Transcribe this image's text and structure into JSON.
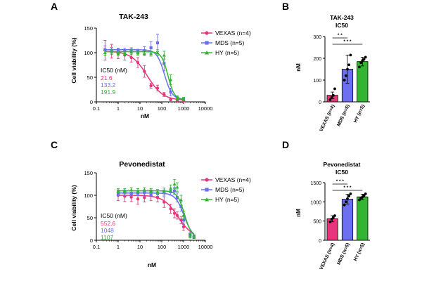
{
  "colors": {
    "vexas": "#e8347a",
    "mds": "#6b6ff0",
    "hy": "#33b533",
    "axis": "#000000"
  },
  "chart_data": [
    {
      "panel_letter": "A",
      "type": "line",
      "title": "TAK-243",
      "xlabel": "nM",
      "ylabel": "Cell viability (%)",
      "xscale": "log",
      "xlim": [
        0.1,
        10000
      ],
      "ylim": [
        0,
        150
      ],
      "xticks": [
        0.1,
        1,
        10,
        100,
        1000,
        10000
      ],
      "xtick_labels": [
        "0.1",
        "1",
        "10",
        "100",
        "1000",
        "10000"
      ],
      "yticks": [
        0,
        50,
        100,
        150
      ],
      "ytick_labels": [
        "0",
        "50",
        "100",
        "150"
      ],
      "legend_position": "right",
      "ic50_header": "IC50 (nM)",
      "series": [
        {
          "name": "VEXAS (n=4)",
          "color_key": "vexas",
          "ic50": 21.6,
          "ic50_label": "21.6",
          "hill": 1.2,
          "top": 103,
          "bottom": 3,
          "x": [
            0.25,
            0.5,
            1,
            2,
            4,
            8,
            16,
            32,
            64,
            128,
            256,
            512,
            1000
          ],
          "y": [
            105,
            103,
            98,
            95,
            90,
            80,
            62,
            33,
            28,
            15,
            5,
            3,
            2
          ],
          "err": [
            20,
            14,
            10,
            10,
            9,
            10,
            12,
            5,
            6,
            4,
            3,
            2,
            2
          ]
        },
        {
          "name": "MDS (n=5)",
          "color_key": "mds",
          "ic50": 133.2,
          "ic50_label": "133.2",
          "hill": 2.5,
          "top": 106,
          "bottom": 5,
          "x": [
            0.25,
            0.5,
            1,
            2,
            4,
            8,
            16,
            32,
            64,
            128,
            256,
            512,
            1000
          ],
          "y": [
            106,
            105,
            103,
            104,
            105,
            102,
            104,
            110,
            120,
            78,
            20,
            8,
            5
          ],
          "err": [
            8,
            6,
            6,
            5,
            5,
            5,
            8,
            12,
            18,
            15,
            8,
            4,
            3
          ]
        },
        {
          "name": "HY (n=5)",
          "color_key": "hy",
          "ic50": 191.9,
          "ic50_label": "191.9",
          "hill": 3.0,
          "top": 102,
          "bottom": 5,
          "x": [
            0.25,
            0.5,
            1,
            2,
            4,
            8,
            16,
            32,
            64,
            128,
            256,
            512,
            1000
          ],
          "y": [
            100,
            101,
            100,
            100,
            101,
            100,
            99,
            98,
            100,
            95,
            45,
            8,
            6
          ],
          "err": [
            5,
            5,
            5,
            5,
            5,
            5,
            5,
            5,
            6,
            8,
            10,
            4,
            3
          ]
        }
      ]
    },
    {
      "panel_letter": "B",
      "type": "bar",
      "title": "TAK-243",
      "subtitle": "IC50",
      "ylabel": "nM",
      "ylim": [
        0,
        300
      ],
      "yticks": [
        0,
        100,
        200,
        300
      ],
      "ytick_labels": [
        "0",
        "100",
        "200",
        "300"
      ],
      "categories": [
        "VEXAS (n=4)",
        "MDS (n=5)",
        "HY (n=5)"
      ],
      "values": [
        30,
        150,
        185
      ],
      "errors": [
        15,
        65,
        20
      ],
      "points": [
        [
          10,
          20,
          30,
          60
        ],
        [
          100,
          120,
          150,
          170,
          215
        ],
        [
          160,
          180,
          190,
          195,
          205
        ]
      ],
      "bar_color_keys": [
        "vexas",
        "mds",
        "hy"
      ],
      "significance": [
        {
          "from": 0,
          "to": 1,
          "label": "* *"
        },
        {
          "from": 0,
          "to": 2,
          "label": "* * *"
        }
      ]
    },
    {
      "panel_letter": "C",
      "type": "line",
      "title": "Pevonedistat",
      "xlabel": "nM",
      "ylabel": "Cell viability (%)",
      "xscale": "log",
      "xlim": [
        0.1,
        10000
      ],
      "ylim": [
        0,
        150
      ],
      "xticks": [
        0.1,
        1,
        10,
        100,
        1000,
        10000
      ],
      "xtick_labels": [
        "0.1",
        "1",
        "10",
        "100",
        "1000",
        "10000"
      ],
      "yticks": [
        0,
        50,
        100,
        150
      ],
      "ytick_labels": [
        "0",
        "50",
        "100",
        "150"
      ],
      "legend_position": "right",
      "ic50_header": "IC50 (nM)",
      "series": [
        {
          "name": "VEXAS (n=4)",
          "color_key": "vexas",
          "ic50": 552.6,
          "ic50_label": "552.6",
          "hill": 1.3,
          "top": 100,
          "bottom": 5,
          "x": [
            1,
            2,
            4,
            8,
            16,
            32,
            64,
            128,
            256,
            384,
            512,
            768,
            1000,
            2000,
            3000
          ],
          "y": [
            100,
            98,
            96,
            92,
            95,
            100,
            95,
            85,
            70,
            60,
            55,
            45,
            30,
            12,
            8
          ],
          "err": [
            12,
            12,
            10,
            12,
            10,
            12,
            10,
            12,
            10,
            10,
            8,
            8,
            8,
            5,
            4
          ]
        },
        {
          "name": "MDS (n=5)",
          "color_key": "mds",
          "ic50": 1048,
          "ic50_label": "1048",
          "hill": 2.2,
          "top": 105,
          "bottom": 5,
          "x": [
            1,
            2,
            4,
            8,
            16,
            32,
            64,
            128,
            256,
            384,
            512,
            768,
            1000,
            2000,
            3000
          ],
          "y": [
            105,
            106,
            104,
            105,
            106,
            105,
            104,
            106,
            108,
            110,
            95,
            75,
            45,
            12,
            8
          ],
          "err": [
            6,
            6,
            6,
            6,
            6,
            6,
            6,
            6,
            8,
            8,
            10,
            10,
            10,
            5,
            4
          ]
        },
        {
          "name": "HY (n=5)",
          "color_key": "hy",
          "ic50": 1107,
          "ic50_label": "1107",
          "hill": 2.6,
          "top": 110,
          "bottom": 5,
          "x": [
            1,
            2,
            4,
            8,
            16,
            32,
            64,
            128,
            256,
            384,
            512,
            768,
            1000,
            2000,
            3000
          ],
          "y": [
            110,
            110,
            112,
            110,
            112,
            110,
            108,
            110,
            115,
            125,
            118,
            90,
            55,
            10,
            8
          ],
          "err": [
            5,
            5,
            5,
            5,
            5,
            5,
            5,
            6,
            8,
            10,
            10,
            10,
            10,
            5,
            4
          ]
        }
      ]
    },
    {
      "panel_letter": "D",
      "type": "bar",
      "title": "Pevonedistat",
      "subtitle": "IC50",
      "ylabel": "nM",
      "ylim": [
        0,
        1500
      ],
      "yticks": [
        0,
        500,
        1000,
        1500
      ],
      "ytick_labels": [
        "0",
        "500",
        "1000",
        "1500"
      ],
      "categories": [
        "VEXAS (n=4)",
        "MDS (n=5)",
        "HY (n=5)"
      ],
      "values": [
        560,
        1070,
        1130
      ],
      "errors": [
        80,
        130,
        70
      ],
      "points": [
        [
          480,
          550,
          590,
          640
        ],
        [
          920,
          1000,
          1080,
          1150,
          1210
        ],
        [
          1050,
          1100,
          1130,
          1160,
          1210
        ]
      ],
      "bar_color_keys": [
        "vexas",
        "mds",
        "hy"
      ],
      "significance": [
        {
          "from": 0,
          "to": 1,
          "label": "* * *"
        },
        {
          "from": 0,
          "to": 2,
          "label": "* * *"
        }
      ]
    }
  ]
}
